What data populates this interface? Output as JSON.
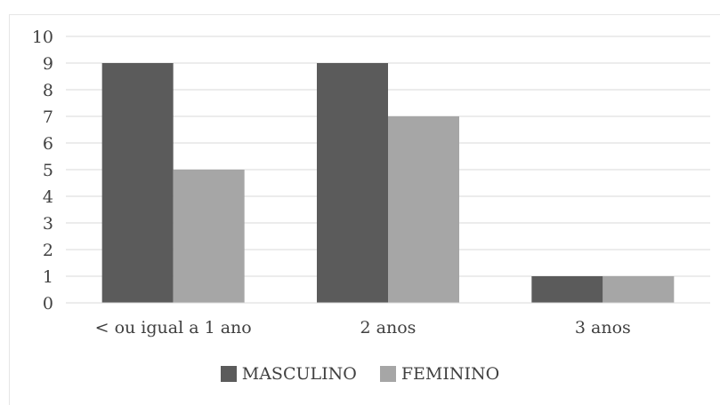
{
  "chart_data": {
    "type": "bar",
    "categories": [
      "< ou igual a 1 ano",
      "2 anos",
      "3 anos"
    ],
    "series": [
      {
        "name": "MASCULINO",
        "values": [
          9,
          9,
          1
        ],
        "color": "#5b5b5b"
      },
      {
        "name": "FEMININO",
        "values": [
          5,
          7,
          1
        ],
        "color": "#a6a6a6"
      }
    ],
    "title": "",
    "xlabel": "",
    "ylabel": "",
    "ylim": [
      0,
      10
    ],
    "yticks": [
      0,
      1,
      2,
      3,
      4,
      5,
      6,
      7,
      8,
      9,
      10
    ],
    "grid": true,
    "legend_position": "bottom"
  }
}
